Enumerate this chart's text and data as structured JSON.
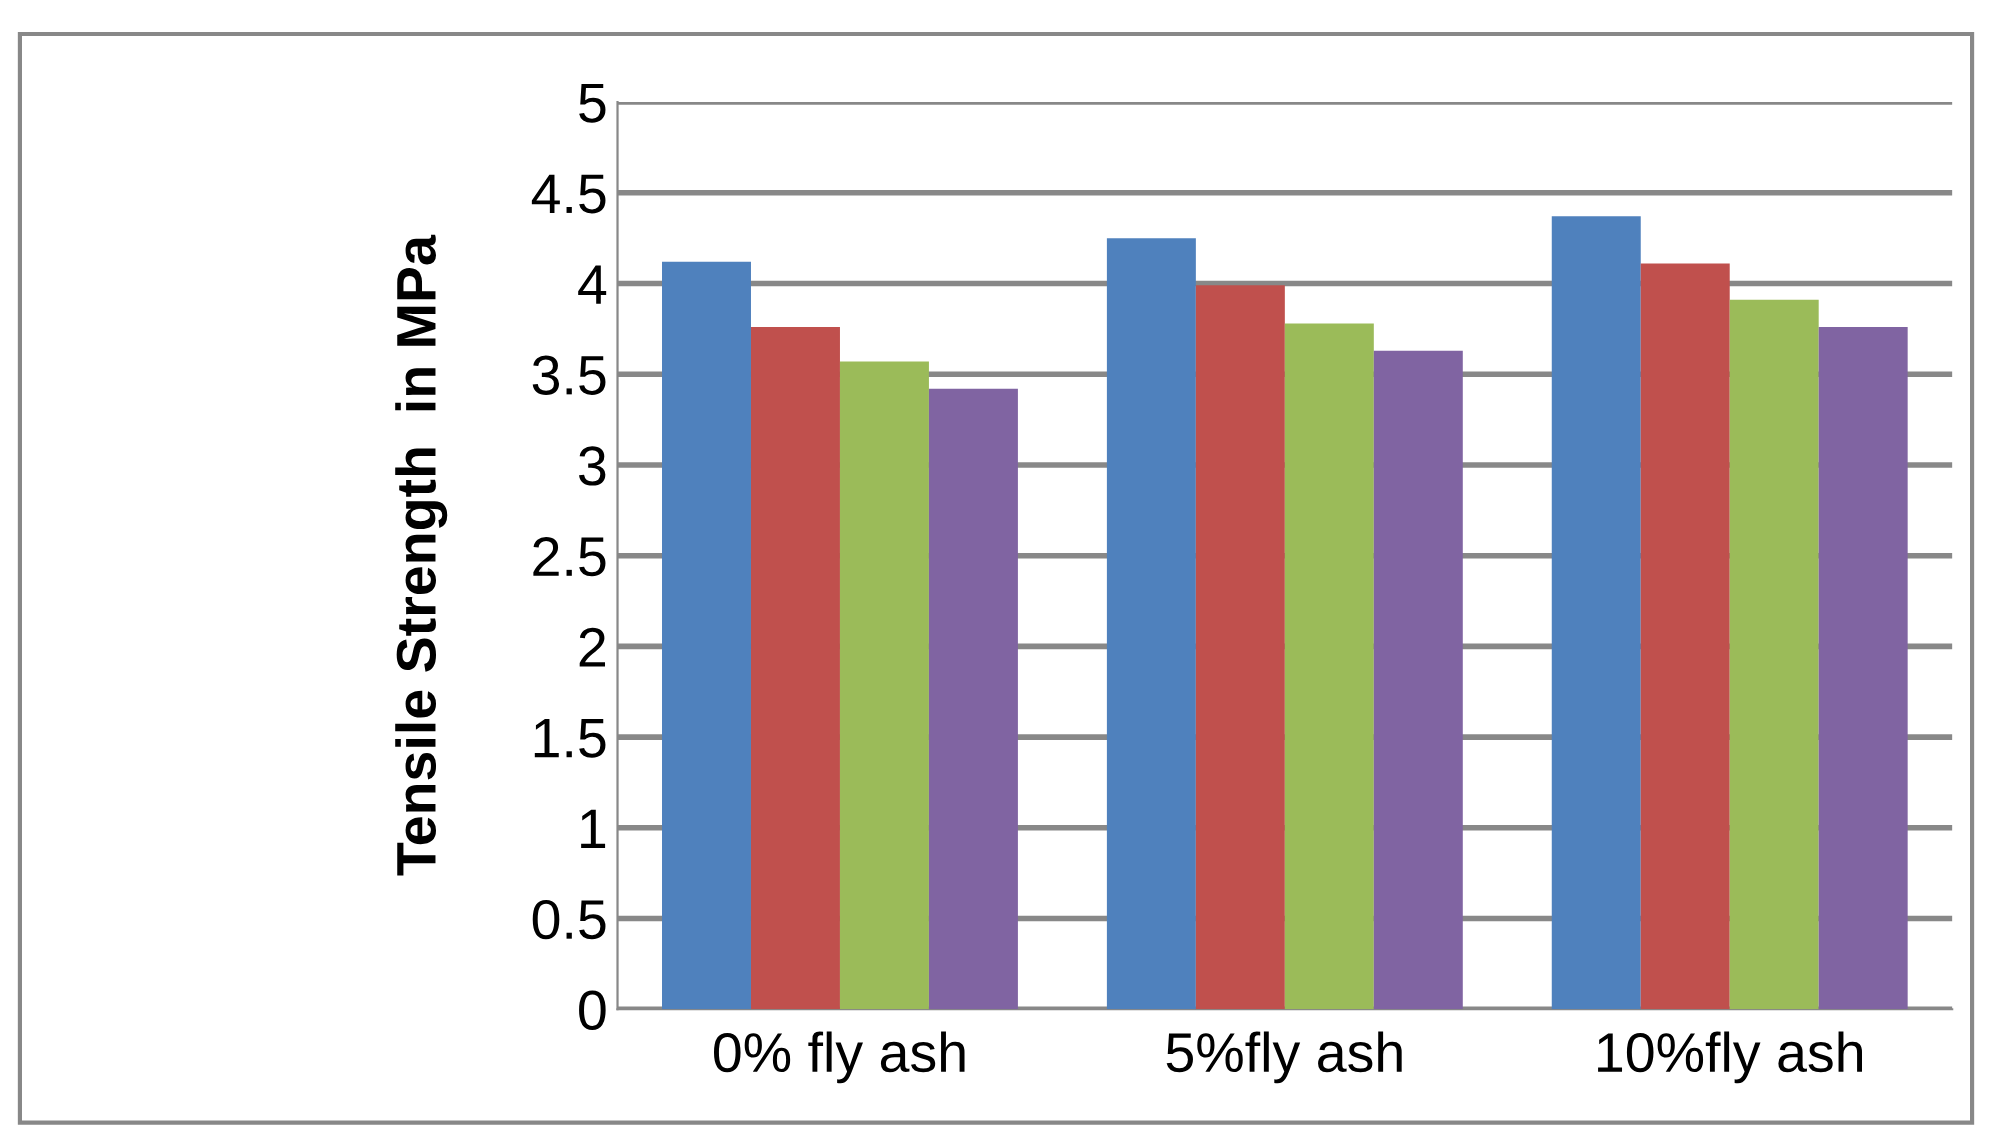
{
  "chart_data": {
    "type": "bar",
    "ylabel": "Tensile Strength  in MPa",
    "categories": [
      "0% fly ash",
      "5%fly ash",
      "10%fly ash"
    ],
    "series": [
      {
        "color": "#4f81bd",
        "values": [
          4.12,
          4.25,
          4.37
        ]
      },
      {
        "color": "#c0504d",
        "values": [
          3.76,
          3.99,
          4.11
        ]
      },
      {
        "color": "#9bbb59",
        "values": [
          3.57,
          3.78,
          3.91
        ]
      },
      {
        "color": "#8064a2",
        "values": [
          3.42,
          3.63,
          3.76
        ]
      }
    ],
    "ylim": [
      0,
      5
    ],
    "yticks": [
      0,
      0.5,
      1,
      1.5,
      2,
      2.5,
      3,
      3.5,
      4,
      4.5,
      5
    ],
    "grid": "y",
    "legend": false
  }
}
